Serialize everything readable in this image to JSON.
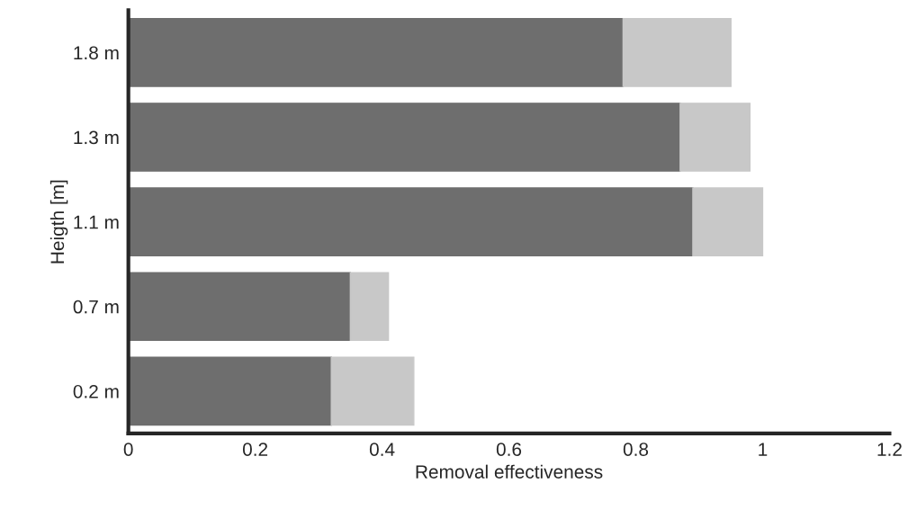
{
  "chart_data": {
    "type": "bar",
    "orientation": "horizontal",
    "stacked": true,
    "xlabel": "Removal effectiveness",
    "ylabel": "Heigth [m]",
    "categories": [
      "1.8 m",
      "1.3 m",
      "1.1 m",
      "0.7 m",
      "0.2 m"
    ],
    "series": [
      {
        "color": "#6e6e6e",
        "values": [
          0.78,
          0.87,
          0.89,
          0.35,
          0.32
        ]
      },
      {
        "color": "#c8c8c8",
        "values": [
          0.17,
          0.11,
          0.11,
          0.06,
          0.13
        ]
      }
    ],
    "xlim": [
      0,
      1.2
    ],
    "xticks": [
      0,
      0.2,
      0.4,
      0.6,
      0.8,
      1,
      1.2
    ],
    "grid": false,
    "legend": false
  }
}
